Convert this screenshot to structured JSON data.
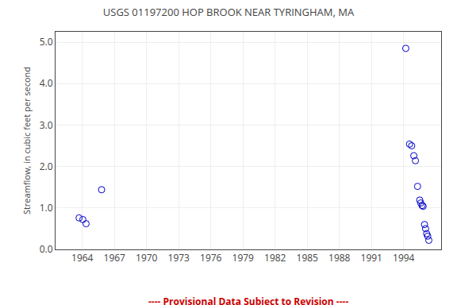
{
  "chart_data": {
    "type": "scatter",
    "title": "USGS 01197200 HOP BROOK NEAR TYRINGHAM, MA",
    "ylabel": "Streamflow, in cubic feet per second",
    "x": [
      1963.7,
      1964.05,
      1964.35,
      1965.8,
      1994.2,
      1994.55,
      1994.75,
      1994.95,
      1995.1,
      1995.3,
      1995.5,
      1995.6,
      1995.72,
      1995.82,
      1995.95,
      1996.05,
      1996.15,
      1996.25,
      1996.35
    ],
    "values": [
      0.76,
      0.72,
      0.62,
      1.44,
      4.85,
      2.54,
      2.5,
      2.26,
      2.14,
      1.52,
      1.19,
      1.12,
      1.06,
      1.04,
      0.6,
      0.5,
      0.38,
      0.32,
      0.22
    ],
    "color": "#0000cc",
    "marker": "circle-open",
    "xlim": [
      1961.5,
      1997.5
    ],
    "ylim": [
      0.0,
      5.25
    ],
    "xticks": [
      1964,
      1967,
      1970,
      1973,
      1976,
      1979,
      1982,
      1985,
      1988,
      1991,
      1994
    ],
    "yticks": [
      {
        "value": 0.0,
        "label": "0.0"
      },
      {
        "value": 1.0,
        "label": "1.0"
      },
      {
        "value": 2.0,
        "label": "2.0"
      },
      {
        "value": 3.0,
        "label": "3.0"
      },
      {
        "value": 4.0,
        "label": "4.0"
      },
      {
        "value": 5.0,
        "label": "5.0"
      }
    ],
    "grid": true,
    "annotations": [
      {
        "text": "---- Provisional Data Subject to Revision ----",
        "color": "#cc0000"
      }
    ]
  }
}
